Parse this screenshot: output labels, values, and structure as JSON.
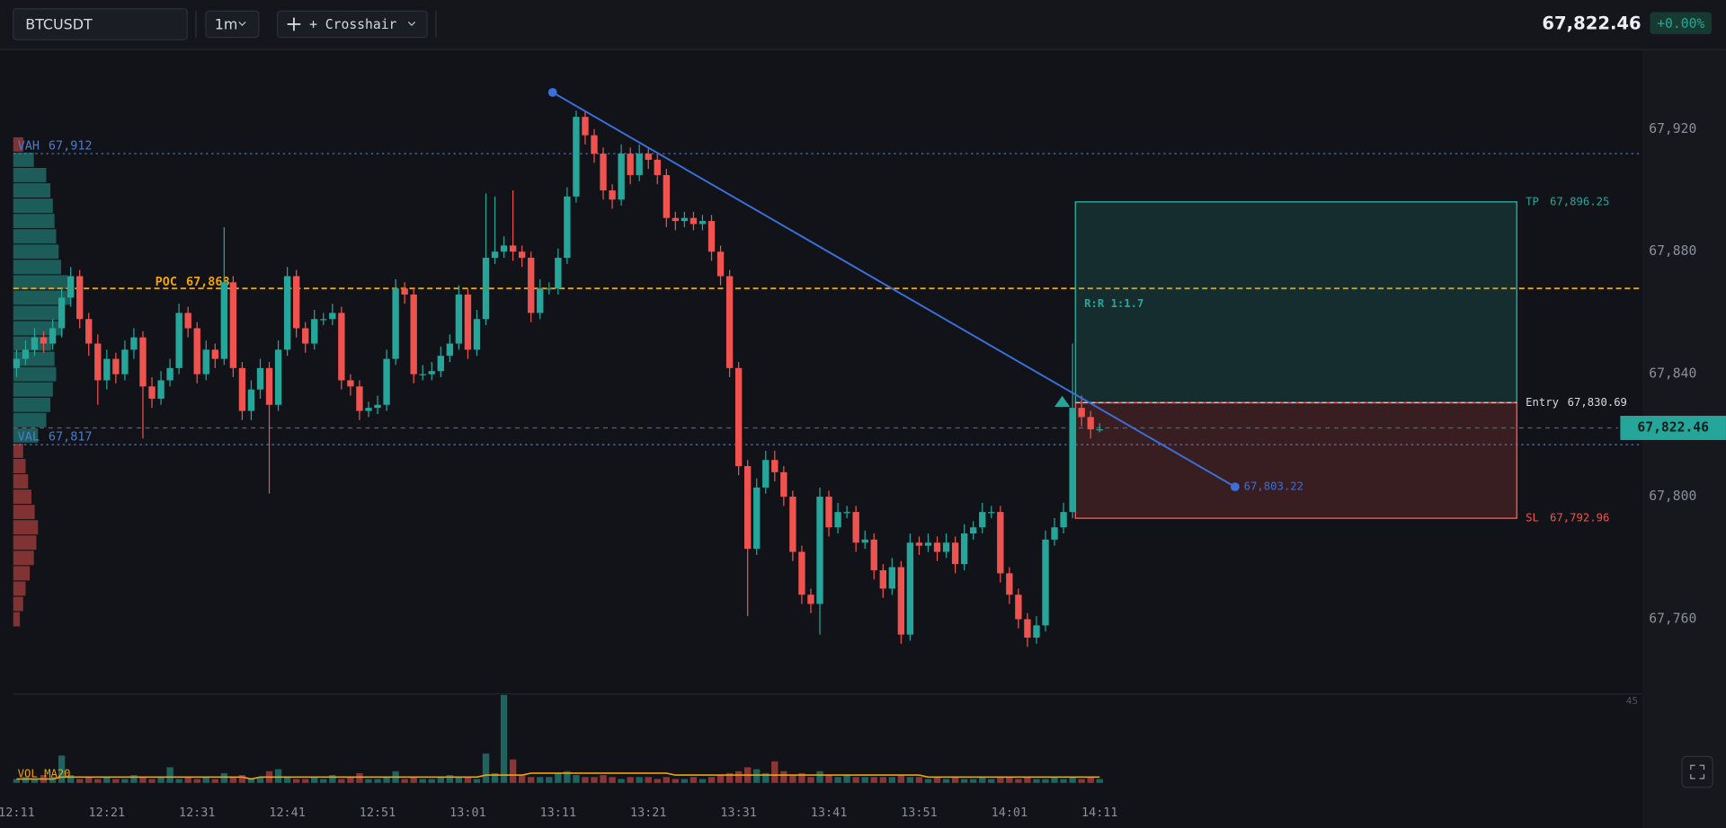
{
  "toolbar": {
    "symbol": "BTCUSDT",
    "interval": "1m",
    "tool": "+ Crosshair",
    "change": "+0.00%"
  },
  "chart_data": {
    "type": "candlestick",
    "up_color": "#26a69a",
    "down_color": "#ef5350",
    "categories": [
      "12:11",
      null,
      null,
      null,
      null,
      null,
      null,
      null,
      null,
      null,
      "12:21",
      null,
      null,
      null,
      null,
      null,
      null,
      null,
      null,
      null,
      "12:31",
      null,
      null,
      null,
      null,
      null,
      null,
      null,
      null,
      null,
      "12:41",
      null,
      null,
      null,
      null,
      null,
      null,
      null,
      null,
      null,
      "12:51",
      null,
      null,
      null,
      null,
      null,
      null,
      null,
      null,
      null,
      "13:01",
      null,
      null,
      null,
      null,
      null,
      null,
      null,
      null,
      null,
      "13:11",
      null,
      null,
      null,
      null,
      null,
      null,
      null,
      null,
      null,
      "13:21",
      null,
      null,
      null,
      null,
      null,
      null,
      null,
      null,
      null,
      "13:31",
      null,
      null,
      null,
      null,
      null,
      null,
      null,
      null,
      null,
      "13:41",
      null,
      null,
      null,
      null,
      null,
      null,
      null,
      null,
      null,
      "13:51",
      null,
      null,
      null,
      null,
      null,
      null,
      null,
      null,
      null,
      "14:01",
      null,
      null,
      null,
      null,
      null,
      null,
      null,
      null,
      null,
      "14:11"
    ],
    "open": [
      67842,
      67845,
      67848,
      67852,
      67850,
      67855,
      67865,
      67872,
      67858,
      67850,
      67838,
      67845,
      67840,
      67848,
      67852,
      67836,
      67832,
      67838,
      67842,
      67860,
      67855,
      67840,
      67848,
      67845,
      67870,
      67842,
      67828,
      67835,
      67842,
      67830,
      67848,
      67872,
      67855,
      67850,
      67858,
      67858,
      67860,
      67838,
      67836,
      67828,
      67829,
      67830,
      67845,
      67868,
      67866,
      67840,
      67840,
      67841,
      67846,
      67850,
      67866,
      67848,
      67858,
      67878,
      67880,
      67882,
      67880,
      67878,
      67860,
      67868,
      67868,
      67878,
      67898,
      67924,
      67918,
      67912,
      67900,
      67897,
      67912,
      67905,
      67912,
      67910,
      67905,
      67891,
      67890,
      67891,
      67889,
      67890,
      67880,
      67872,
      67842,
      67810,
      67783,
      67803,
      67812,
      67808,
      67800,
      67782,
      67768,
      67765,
      67800,
      67790,
      67795,
      67795,
      67785,
      67786,
      67776,
      67770,
      67777,
      67755,
      67785,
      67784,
      67785,
      67782,
      67785,
      67778,
      67788,
      67790,
      67795,
      67795,
      67775,
      67768,
      67760,
      67754,
      67758,
      67786,
      67790,
      67795,
      67829,
      67826,
      67822
    ],
    "high": [
      67848,
      67851,
      67855,
      67854,
      67858,
      67868,
      67875,
      67874,
      67860,
      67853,
      67848,
      67847,
      67851,
      67855,
      67854,
      67839,
      67841,
      67845,
      67863,
      67862,
      67857,
      67851,
      67850,
      67888,
      67872,
      67844,
      67838,
      67845,
      67844,
      67851,
      67875,
      67874,
      67857,
      67861,
      67860,
      67863,
      67862,
      67840,
      67838,
      67831,
      67833,
      67848,
      67871,
      67870,
      67868,
      67843,
      67844,
      67849,
      67853,
      67869,
      67868,
      67861,
      67899,
      67898,
      67885,
      67900,
      67882,
      67880,
      67871,
      67870,
      67881,
      67901,
      67926,
      67926,
      67920,
      67914,
      67902,
      67915,
      67914,
      67915,
      67914,
      67912,
      67907,
      67893,
      67893,
      67893,
      67892,
      67892,
      67882,
      67874,
      67844,
      67812,
      67806,
      67815,
      67815,
      67810,
      67802,
      67784,
      67770,
      67803,
      67802,
      67798,
      67797,
      67797,
      67789,
      67788,
      67778,
      67780,
      67779,
      67788,
      67787,
      67788,
      67787,
      67788,
      67787,
      67791,
      67792,
      67798,
      67797,
      67797,
      67777,
      67770,
      67762,
      67761,
      67789,
      67793,
      67798,
      67850,
      67833,
      67828,
      67824
    ],
    "low": [
      67839,
      67843,
      67846,
      67847,
      67848,
      67852,
      67862,
      67855,
      67846,
      67830,
      67835,
      67837,
      67838,
      67845,
      67819,
      67829,
      67830,
      67836,
      67840,
      67852,
      67837,
      67838,
      67842,
      67843,
      67839,
      67825,
      67825,
      67832,
      67801,
      67828,
      67846,
      67852,
      67847,
      67848,
      67856,
      67856,
      67835,
      67833,
      67825,
      67826,
      67827,
      67828,
      67843,
      67863,
      67837,
      67838,
      67838,
      67839,
      67844,
      67848,
      67845,
      67846,
      67856,
      67876,
      67878,
      67877,
      67875,
      67857,
      67858,
      67866,
      67866,
      67876,
      67896,
      67915,
      67909,
      67897,
      67894,
      67895,
      67902,
      67903,
      67907,
      67902,
      67888,
      67887,
      67888,
      67887,
      67887,
      67877,
      67869,
      67839,
      67807,
      67761,
      67781,
      67801,
      67805,
      67797,
      67779,
      67765,
      67762,
      67755,
      67787,
      67788,
      67793,
      67782,
      67783,
      67773,
      67767,
      67768,
      67752,
      67753,
      67781,
      67782,
      67779,
      67780,
      67775,
      67776,
      67786,
      67788,
      67793,
      67772,
      67765,
      67757,
      67751,
      67752,
      67756,
      67784,
      67788,
      67793,
      67823,
      67819,
      67821
    ],
    "close": [
      67845,
      67848,
      67852,
      67850,
      67855,
      67865,
      67872,
      67858,
      67850,
      67838,
      67845,
      67840,
      67848,
      67852,
      67836,
      67832,
      67838,
      67842,
      67860,
      67855,
      67840,
      67848,
      67845,
      67870,
      67842,
      67828,
      67835,
      67842,
      67830,
      67848,
      67872,
      67855,
      67850,
      67858,
      67858,
      67860,
      67838,
      67836,
      67828,
      67829,
      67830,
      67845,
      67868,
      67866,
      67840,
      67840,
      67841,
      67846,
      67850,
      67866,
      67848,
      67858,
      67878,
      67880,
      67882,
      67880,
      67878,
      67860,
      67868,
      67868,
      67878,
      67898,
      67924,
      67918,
      67912,
      67900,
      67897,
      67912,
      67905,
      67912,
      67910,
      67905,
      67891,
      67890,
      67891,
      67889,
      67890,
      67880,
      67872,
      67842,
      67810,
      67783,
      67803,
      67812,
      67808,
      67800,
      67782,
      67768,
      67765,
      67800,
      67790,
      67795,
      67795,
      67785,
      67786,
      67776,
      67770,
      67777,
      67755,
      67785,
      67784,
      67785,
      67782,
      67785,
      67778,
      67788,
      67790,
      67795,
      67795,
      67775,
      67768,
      67760,
      67754,
      67758,
      67786,
      67790,
      67795,
      67829,
      67826,
      67822,
      67822
    ],
    "ylim": [
      67736,
      67946
    ],
    "yticks": [
      {
        "value": 67760,
        "label": "67,760"
      },
      {
        "value": 67800,
        "label": "67,800"
      },
      {
        "value": 67840,
        "label": "67,840"
      },
      {
        "value": 67880,
        "label": "67,880"
      },
      {
        "value": 67920,
        "label": "67,920"
      }
    ],
    "last_price": {
      "value": 67822.46,
      "label": "67,822.46"
    },
    "volume_profile": {
      "prices": [
        67760,
        67765,
        67770,
        67775,
        67780,
        67785,
        67790,
        67795,
        67800,
        67805,
        67810,
        67815,
        67820,
        67825,
        67830,
        67835,
        67840,
        67845,
        67850,
        67855,
        67860,
        67865,
        67870,
        67875,
        67880,
        67885,
        67890,
        67895,
        67900,
        67905,
        67910,
        67915
      ],
      "values": [
        8,
        12,
        15,
        20,
        25,
        28,
        30,
        26,
        22,
        18,
        15,
        12,
        30,
        40,
        45,
        48,
        52,
        50,
        46,
        60,
        62,
        70,
        66,
        58,
        55,
        52,
        50,
        48,
        45,
        40,
        25,
        12
      ]
    },
    "levels": [
      {
        "name": "VAH",
        "value": 67912,
        "label": "67,912",
        "color": "#4a7bd0"
      },
      {
        "name": "POC",
        "value": 67868,
        "label": "67,868",
        "color": "#f0a30a"
      },
      {
        "name": "VAL",
        "value": 67817,
        "label": "67,817",
        "color": "#4a7bd0"
      }
    ],
    "position": {
      "tp": {
        "name": "TP",
        "value": 67896.25,
        "label": "67,896.25"
      },
      "entry": {
        "name": "Entry",
        "value": 67830.69,
        "label": "67,830.69"
      },
      "sl": {
        "name": "SL",
        "value": 67792.96,
        "label": "67,792.96"
      },
      "ratio": "R:R 1:1.7"
    },
    "trendline": {
      "start": 67932,
      "end": {
        "value": 67803.22,
        "label": "67,803.22"
      },
      "color": "#3b6fd9"
    },
    "volume": {
      "title": "VOL MA20",
      "ylim": [
        0,
        45
      ],
      "yticks": [
        45
      ],
      "ma_color": "#f0a30a",
      "values": [
        2,
        3,
        2,
        4,
        3,
        14,
        4,
        2,
        3,
        2,
        3,
        2,
        2,
        4,
        3,
        2,
        3,
        8,
        2,
        3,
        2,
        3,
        2,
        5,
        3,
        4,
        2,
        3,
        6,
        7,
        3,
        2,
        2,
        3,
        2,
        4,
        2,
        3,
        5,
        2,
        2,
        3,
        6,
        2,
        3,
        2,
        2,
        3,
        4,
        3,
        3,
        2,
        15,
        5,
        45,
        12,
        4,
        3,
        3,
        3,
        5,
        6,
        4,
        3,
        3,
        4,
        3,
        2,
        3,
        3,
        3,
        2,
        3,
        2,
        2,
        3,
        2,
        3,
        4,
        5,
        6,
        8,
        7,
        5,
        11,
        6,
        4,
        5,
        3,
        6,
        4,
        3,
        4,
        3,
        3,
        3,
        3,
        3,
        4,
        3,
        3,
        2,
        3,
        2,
        3,
        2,
        2,
        3,
        2,
        3,
        3,
        2,
        3,
        2,
        2,
        3,
        2,
        3,
        2,
        3,
        2
      ],
      "ma20": [
        2,
        2,
        2,
        2,
        2,
        3,
        3,
        3,
        3,
        3,
        3,
        3,
        3,
        3,
        3,
        3,
        3,
        3,
        3,
        3,
        3,
        3,
        3,
        3,
        3,
        3,
        2,
        3,
        3,
        3,
        3,
        3,
        3,
        3,
        3,
        3,
        3,
        3,
        3,
        3,
        3,
        3,
        3,
        3,
        3,
        3,
        3,
        3,
        3,
        3,
        3,
        3,
        4,
        4,
        4,
        4,
        4,
        5,
        5,
        5,
        5,
        5,
        5,
        5,
        5,
        5,
        5,
        5,
        5,
        5,
        5,
        5,
        5,
        4,
        4,
        4,
        4,
        4,
        4,
        4,
        4,
        4,
        4,
        4,
        4,
        4,
        4,
        4,
        4,
        4,
        4,
        4,
        4,
        4,
        4,
        4,
        4,
        4,
        4,
        4,
        4,
        3,
        3,
        3,
        3,
        3,
        3,
        3,
        3,
        3,
        3,
        3,
        3,
        3,
        3,
        3,
        3,
        3,
        3,
        3,
        3
      ]
    }
  }
}
